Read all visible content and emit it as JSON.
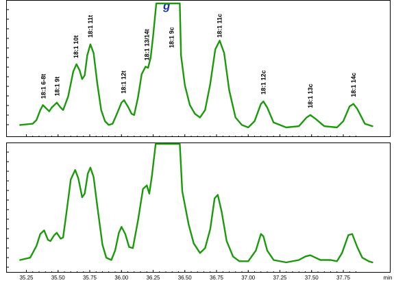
{
  "colors": {
    "trace": "#1a9a0a",
    "frame": "#000000",
    "title": "#1f33b8"
  },
  "title_fragment": "g",
  "chart_data": [
    {
      "type": "line",
      "name": "top",
      "xlim": [
        35.2,
        37.98
      ],
      "ylim": [
        0,
        100
      ],
      "grid": false,
      "x_unit": "min",
      "series": [
        {
          "points": [
            [
              35.2,
              2
            ],
            [
              35.3,
              3
            ],
            [
              35.33,
              6
            ],
            [
              35.36,
              14
            ],
            [
              35.38,
              18
            ],
            [
              35.41,
              15
            ],
            [
              35.43,
              13
            ],
            [
              35.45,
              16
            ],
            [
              35.49,
              20
            ],
            [
              35.52,
              16
            ],
            [
              35.54,
              14
            ],
            [
              35.58,
              25
            ],
            [
              35.62,
              45
            ],
            [
              35.645,
              51
            ],
            [
              35.67,
              46
            ],
            [
              35.69,
              39
            ],
            [
              35.71,
              42
            ],
            [
              35.73,
              58
            ],
            [
              35.755,
              67
            ],
            [
              35.78,
              60
            ],
            [
              35.81,
              35
            ],
            [
              35.84,
              14
            ],
            [
              35.87,
              5
            ],
            [
              35.9,
              2
            ],
            [
              35.93,
              3
            ],
            [
              35.96,
              10
            ],
            [
              36.0,
              20
            ],
            [
              36.02,
              22
            ],
            [
              36.05,
              17
            ],
            [
              36.08,
              11
            ],
            [
              36.1,
              10
            ],
            [
              36.13,
              24
            ],
            [
              36.16,
              43
            ],
            [
              36.19,
              49
            ],
            [
              36.21,
              48
            ],
            [
              36.23,
              56
            ],
            [
              36.25,
              74
            ],
            [
              36.275,
              100
            ],
            [
              36.295,
              100
            ],
            [
              36.46,
              100
            ],
            [
              36.47,
              58
            ],
            [
              36.5,
              34
            ],
            [
              36.54,
              18
            ],
            [
              36.58,
              11
            ],
            [
              36.62,
              8
            ],
            [
              36.66,
              14
            ],
            [
              36.7,
              35
            ],
            [
              36.74,
              63
            ],
            [
              36.775,
              70
            ],
            [
              36.81,
              60
            ],
            [
              36.85,
              30
            ],
            [
              36.9,
              8
            ],
            [
              36.95,
              2
            ],
            [
              37.0,
              0
            ],
            [
              37.05,
              5
            ],
            [
              37.1,
              19
            ],
            [
              37.12,
              21
            ],
            [
              37.15,
              16
            ],
            [
              37.2,
              4
            ],
            [
              37.3,
              0
            ],
            [
              37.4,
              1
            ],
            [
              37.46,
              8
            ],
            [
              37.49,
              10
            ],
            [
              37.53,
              7
            ],
            [
              37.6,
              1
            ],
            [
              37.7,
              0
            ],
            [
              37.75,
              5
            ],
            [
              37.8,
              17
            ],
            [
              37.83,
              19
            ],
            [
              37.86,
              15
            ],
            [
              37.92,
              3
            ],
            [
              37.98,
              1
            ]
          ]
        }
      ],
      "peak_labels": [
        {
          "text": "18:1 6-8t",
          "x": 35.385
        },
        {
          "text": "18:1 9t",
          "x": 35.492
        },
        {
          "text": "18:1 10t",
          "x": 35.642
        },
        {
          "text": "18:1 11t",
          "x": 35.755
        },
        {
          "text": "18:1 12t",
          "x": 36.017
        },
        {
          "text": "18:1 13/14t",
          "x": 36.202
        },
        {
          "text": "18:1 9c",
          "x": 36.395
        },
        {
          "text": "18:1 11c",
          "x": 36.775
        },
        {
          "text": "18:1 12c",
          "x": 37.12
        },
        {
          "text": "18:1 13c",
          "x": 37.49
        },
        {
          "text": "18:1 14c",
          "x": 37.83
        }
      ]
    },
    {
      "type": "line",
      "name": "bottom",
      "xlim": [
        35.2,
        37.98
      ],
      "ylim": [
        0,
        100
      ],
      "grid": false,
      "x_unit": "min",
      "x_ticks": [
        "35.25",
        "35.50",
        "35.75",
        "36.00",
        "36.25",
        "36.50",
        "36.75",
        "37.00",
        "37.25",
        "37.50",
        "37.75",
        "min"
      ],
      "series": [
        {
          "points": [
            [
              35.2,
              2
            ],
            [
              35.28,
              4
            ],
            [
              35.33,
              14
            ],
            [
              35.36,
              24
            ],
            [
              35.39,
              27
            ],
            [
              35.42,
              19
            ],
            [
              35.44,
              18
            ],
            [
              35.47,
              23
            ],
            [
              35.49,
              25
            ],
            [
              35.52,
              20
            ],
            [
              35.54,
              21
            ],
            [
              35.57,
              45
            ],
            [
              35.6,
              70
            ],
            [
              35.635,
              78
            ],
            [
              35.66,
              71
            ],
            [
              35.69,
              55
            ],
            [
              35.71,
              58
            ],
            [
              35.735,
              75
            ],
            [
              35.755,
              80
            ],
            [
              35.78,
              72
            ],
            [
              35.81,
              47
            ],
            [
              35.85,
              15
            ],
            [
              35.88,
              4
            ],
            [
              35.92,
              2
            ],
            [
              35.95,
              10
            ],
            [
              35.98,
              25
            ],
            [
              36.0,
              30
            ],
            [
              36.03,
              24
            ],
            [
              36.06,
              13
            ],
            [
              36.09,
              12
            ],
            [
              36.13,
              35
            ],
            [
              36.17,
              62
            ],
            [
              36.2,
              65
            ],
            [
              36.22,
              58
            ],
            [
              36.24,
              73
            ],
            [
              36.27,
              100
            ],
            [
              36.29,
              100
            ],
            [
              36.46,
              100
            ],
            [
              36.48,
              60
            ],
            [
              36.53,
              32
            ],
            [
              36.57,
              16
            ],
            [
              36.62,
              8
            ],
            [
              36.66,
              12
            ],
            [
              36.7,
              28
            ],
            [
              36.735,
              54
            ],
            [
              36.76,
              57
            ],
            [
              36.79,
              43
            ],
            [
              36.83,
              18
            ],
            [
              36.88,
              5
            ],
            [
              36.93,
              1
            ],
            [
              37.0,
              1
            ],
            [
              37.06,
              10
            ],
            [
              37.1,
              24
            ],
            [
              37.12,
              22
            ],
            [
              37.15,
              10
            ],
            [
              37.2,
              2
            ],
            [
              37.3,
              0
            ],
            [
              37.4,
              2
            ],
            [
              37.45,
              5
            ],
            [
              37.49,
              6
            ],
            [
              37.53,
              4
            ],
            [
              37.57,
              2
            ],
            [
              37.6,
              2
            ],
            [
              37.65,
              2
            ],
            [
              37.7,
              1
            ],
            [
              37.74,
              8
            ],
            [
              37.79,
              23
            ],
            [
              37.82,
              24
            ],
            [
              37.86,
              13
            ],
            [
              37.9,
              4
            ],
            [
              37.95,
              1
            ],
            [
              37.98,
              0
            ]
          ]
        }
      ]
    }
  ]
}
